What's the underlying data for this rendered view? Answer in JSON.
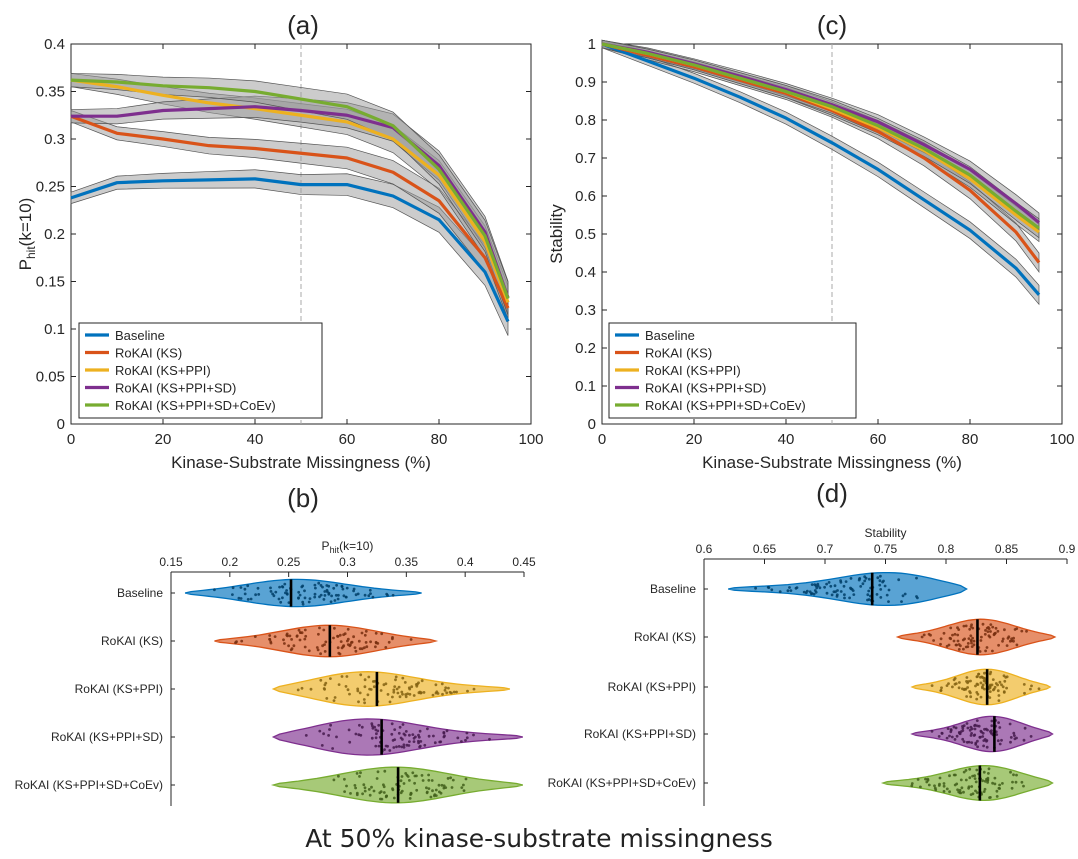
{
  "caption": "At 50% kinase-substrate missingness",
  "colors": {
    "Baseline": "#0072BD",
    "RoKAI (KS)": "#D95319",
    "RoKAI (KS+PPI)": "#EDB120",
    "RoKAI (KS+PPI+SD)": "#7E2F8E",
    "RoKAI (KS+PPI+SD+CoEv)": "#77AC30"
  },
  "chart_data": [
    {
      "panel": "(a)",
      "type": "line",
      "xlabel": "Kinase-Substrate Missingness (%)",
      "ylabel_main": "P",
      "ylabel_sub": "hit",
      "ylabel_tail": "(k=10)",
      "xlim": [
        0,
        100
      ],
      "ylim": [
        0,
        0.4
      ],
      "xticks": [
        "0",
        "20",
        "40",
        "60",
        "80",
        "100"
      ],
      "yticks": [
        "0",
        "0.05",
        "0.1",
        "0.15",
        "0.2",
        "0.25",
        "0.3",
        "0.35",
        "0.4"
      ],
      "grid": "off",
      "reference_line_x": 50,
      "legend_position": "bottom-left",
      "x": [
        0,
        10,
        20,
        30,
        40,
        50,
        60,
        70,
        80,
        90,
        95
      ],
      "series": [
        {
          "name": "Baseline",
          "values": [
            0.238,
            0.254,
            0.256,
            0.257,
            0.258,
            0.252,
            0.252,
            0.24,
            0.215,
            0.16,
            0.108
          ],
          "band": 0.006
        },
        {
          "name": "RoKAI (KS)",
          "values": [
            0.324,
            0.306,
            0.3,
            0.293,
            0.29,
            0.285,
            0.28,
            0.265,
            0.235,
            0.175,
            0.122
          ],
          "band": 0.006
        },
        {
          "name": "RoKAI (KS+PPI)",
          "values": [
            0.362,
            0.355,
            0.346,
            0.338,
            0.332,
            0.325,
            0.318,
            0.3,
            0.262,
            0.192,
            0.128
          ],
          "band": 0.007
        },
        {
          "name": "RoKAI (KS+PPI+SD)",
          "values": [
            0.324,
            0.324,
            0.33,
            0.332,
            0.334,
            0.33,
            0.325,
            0.312,
            0.272,
            0.202,
            0.133
          ],
          "band": 0.007
        },
        {
          "name": "RoKAI (KS+PPI+SD+CoEv)",
          "values": [
            0.362,
            0.36,
            0.356,
            0.354,
            0.35,
            0.342,
            0.334,
            0.314,
            0.268,
            0.198,
            0.132
          ],
          "band": 0.007
        }
      ]
    },
    {
      "panel": "(c)",
      "type": "line",
      "xlabel": "Kinase-Substrate Missingness (%)",
      "ylabel": "Stability",
      "xlim": [
        0,
        100
      ],
      "ylim": [
        0,
        1
      ],
      "xticks": [
        "0",
        "20",
        "40",
        "60",
        "80",
        "100"
      ],
      "yticks": [
        "0",
        "0.1",
        "0.2",
        "0.3",
        "0.4",
        "0.5",
        "0.6",
        "0.7",
        "0.8",
        "0.9",
        "1"
      ],
      "grid": "off",
      "reference_line_x": 50,
      "legend_position": "bottom-left",
      "x": [
        0,
        10,
        20,
        30,
        40,
        50,
        60,
        70,
        80,
        90,
        95
      ],
      "series": [
        {
          "name": "Baseline",
          "values": [
            1.0,
            0.955,
            0.91,
            0.86,
            0.805,
            0.74,
            0.67,
            0.59,
            0.51,
            0.41,
            0.34
          ],
          "band": 0.01
        },
        {
          "name": "RoKAI (KS)",
          "values": [
            1.0,
            0.97,
            0.94,
            0.905,
            0.87,
            0.825,
            0.77,
            0.7,
            0.615,
            0.505,
            0.425
          ],
          "band": 0.01
        },
        {
          "name": "RoKAI (KS+PPI)",
          "values": [
            1.0,
            0.975,
            0.945,
            0.91,
            0.875,
            0.83,
            0.78,
            0.72,
            0.645,
            0.55,
            0.505
          ],
          "band": 0.01
        },
        {
          "name": "RoKAI (KS+PPI+SD)",
          "values": [
            1.0,
            0.978,
            0.948,
            0.915,
            0.88,
            0.84,
            0.795,
            0.735,
            0.67,
            0.58,
            0.53
          ],
          "band": 0.01
        },
        {
          "name": "RoKAI (KS+PPI+SD+CoEv)",
          "values": [
            1.0,
            0.975,
            0.945,
            0.91,
            0.875,
            0.835,
            0.785,
            0.725,
            0.655,
            0.56,
            0.515
          ],
          "band": 0.01
        }
      ]
    },
    {
      "panel": "(b)",
      "type": "violin",
      "xlabel_main": "P",
      "xlabel_sub": "hit",
      "xlabel_tail": "(k=10)",
      "xlim": [
        0.15,
        0.45
      ],
      "xticks": [
        "0.15",
        "0.2",
        "0.25",
        "0.3",
        "0.35",
        "0.4",
        "0.45"
      ],
      "categories": [
        "Baseline",
        "RoKAI (KS)",
        "RoKAI (KS+PPI)",
        "RoKAI (KS+PPI+SD)",
        "RoKAI (KS+PPI+SD+CoEv)"
      ],
      "violins": [
        {
          "name": "Baseline",
          "min": 0.162,
          "max": 0.363,
          "median": 0.252,
          "mode": 0.255,
          "max_halfwidth": 0.65
        },
        {
          "name": "RoKAI (KS)",
          "min": 0.187,
          "max": 0.375,
          "median": 0.285,
          "mode": 0.285,
          "max_halfwidth": 0.75
        },
        {
          "name": "RoKAI (KS+PPI)",
          "min": 0.237,
          "max": 0.438,
          "median": 0.325,
          "mode": 0.31,
          "max_halfwidth": 0.85
        },
        {
          "name": "RoKAI (KS+PPI+SD)",
          "min": 0.237,
          "max": 0.449,
          "median": 0.329,
          "mode": 0.31,
          "max_halfwidth": 0.9
        },
        {
          "name": "RoKAI (KS+PPI+SD+CoEv)",
          "min": 0.237,
          "max": 0.449,
          "median": 0.343,
          "mode": 0.34,
          "max_halfwidth": 0.85
        }
      ]
    },
    {
      "panel": "(d)",
      "type": "violin",
      "xlabel": "Stability",
      "xlim": [
        0.6,
        0.9
      ],
      "xticks": [
        "0.6",
        "0.65",
        "0.7",
        "0.75",
        "0.8",
        "0.85",
        "0.9"
      ],
      "categories": [
        "Baseline",
        "RoKAI (KS)",
        "RoKAI (KS+PPI)",
        "RoKAI (KS+PPI+SD)",
        "RoKAI (KS+PPI+SD+CoEv)"
      ],
      "violins": [
        {
          "name": "Baseline",
          "min": 0.62,
          "max": 0.817,
          "median": 0.739,
          "mode": 0.76,
          "max_halfwidth": 0.85
        },
        {
          "name": "RoKAI (KS)",
          "min": 0.76,
          "max": 0.89,
          "median": 0.826,
          "mode": 0.83,
          "max_halfwidth": 0.85
        },
        {
          "name": "RoKAI (KS+PPI)",
          "min": 0.772,
          "max": 0.886,
          "median": 0.834,
          "mode": 0.835,
          "max_halfwidth": 0.85
        },
        {
          "name": "RoKAI (KS+PPI+SD)",
          "min": 0.772,
          "max": 0.888,
          "median": 0.84,
          "mode": 0.84,
          "max_halfwidth": 0.85
        },
        {
          "name": "RoKAI (KS+PPI+SD+CoEv)",
          "min": 0.748,
          "max": 0.888,
          "median": 0.828,
          "mode": 0.835,
          "max_halfwidth": 0.85
        }
      ]
    }
  ]
}
